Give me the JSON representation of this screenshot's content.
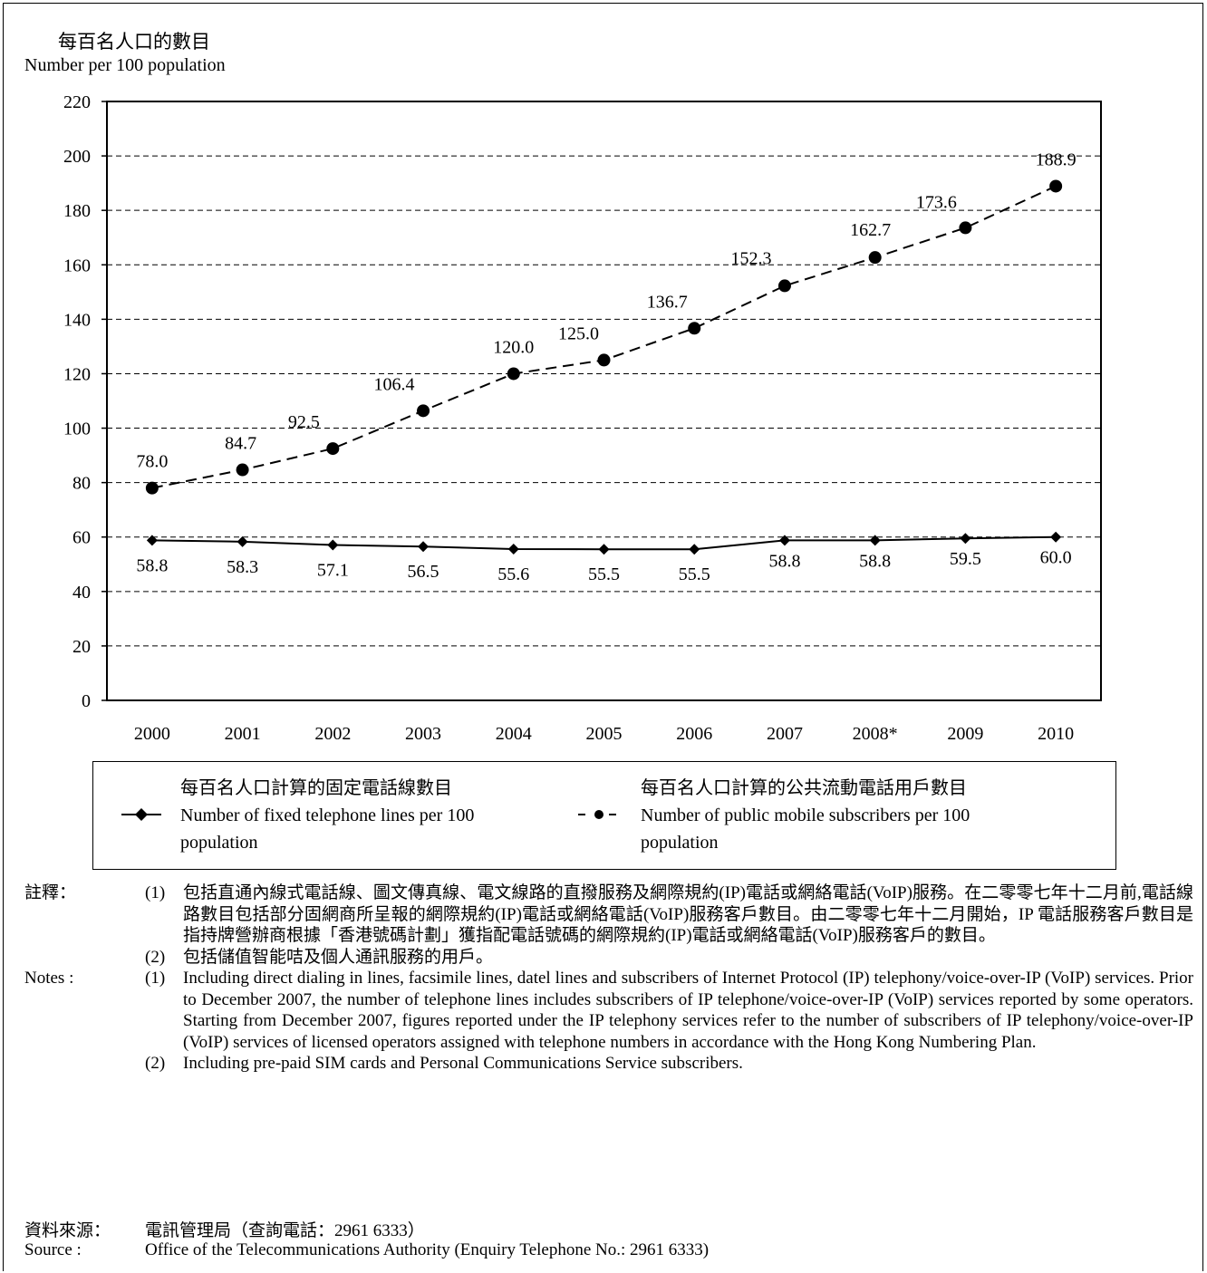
{
  "chart_data": {
    "type": "line",
    "ylabel_zh": "每百名人口的數目",
    "ylabel_en": "Number per 100 population",
    "ylim": [
      0,
      220
    ],
    "yticks": [
      "0",
      "20",
      "40",
      "60",
      "80",
      "100",
      "120",
      "140",
      "160",
      "180",
      "200",
      "220"
    ],
    "categories": [
      "2000",
      "2001",
      "2002",
      "2003",
      "2004",
      "2005",
      "2006",
      "2007",
      "2008*",
      "2009",
      "2010"
    ],
    "grid": true,
    "series": [
      {
        "name_zh": "每百名人口計算的固定電話線數目",
        "name": "Number of fixed telephone lines per 100 population",
        "style": "solid-diamond",
        "values": [
          58.8,
          58.3,
          57.1,
          56.5,
          55.6,
          55.5,
          55.5,
          58.8,
          58.8,
          59.5,
          60.0
        ],
        "labels": [
          "58.8",
          "58.3",
          "57.1",
          "56.5",
          "55.6",
          "55.5",
          "55.5",
          "58.8",
          "58.8",
          "59.5",
          "60.0"
        ]
      },
      {
        "name_zh": "每百名人口計算的公共流動電話用戶數目",
        "name": "Number of public mobile subscribers per 100 population",
        "style": "dashed-circle",
        "values": [
          78.0,
          84.7,
          92.5,
          106.4,
          120.0,
          125.0,
          136.7,
          152.3,
          162.7,
          173.6,
          188.9
        ],
        "labels": [
          "78.0",
          "84.7",
          "92.5",
          "106.4",
          "120.0",
          "125.0",
          "136.7",
          "152.3",
          "162.7",
          "173.6",
          "188.9"
        ]
      }
    ],
    "legend": {
      "position": "bottom",
      "item1_zh": "每百名人口計算的固定電話線數目",
      "item1_en_line1": "Number of fixed telephone lines per 100",
      "item1_en_line2": "population",
      "item2_zh": "每百名人口計算的公共流動電話用戶數目",
      "item2_en_line1": "Number of public mobile subscribers per 100",
      "item2_en_line2": "population"
    }
  },
  "notes": {
    "zh_header": "註釋：",
    "zh_1_num": "(1)",
    "zh_1_text": "包括直通內線式電話線、圖文傳真線、電文線路的直撥服務及網際規約(IP)電話或網絡電話(VoIP)服務。在二零零七年十二月前,電話線路數目包括部分固網商所呈報的網際規約(IP)電話或網絡電話(VoIP)服務客戶數目。由二零零七年十二月開始，IP 電話服務客戶數目是指持牌營辦商根據「香港號碼計劃」獲指配電話號碼的網際規約(IP)電話或網絡電話(VoIP)服務客戶的數目。",
    "zh_2_num": "(2)",
    "zh_2_text": "包括儲值智能咭及個人通訊服務的用戶。",
    "en_header": "Notes :",
    "en_1_num": "(1)",
    "en_1_text": "Including direct dialing in lines, facsimile lines, datel lines and subscribers of Internet Protocol (IP) telephony/voice-over-IP (VoIP) services.  Prior to December 2007, the number of telephone lines includes subscribers of IP telephone/voice-over-IP (VoIP) services reported by some operators.  Starting from December 2007, figures reported under the IP telephony services refer to the number of subscribers of IP telephony/voice-over-IP (VoIP) services of licensed operators assigned with telephone numbers in accordance with the Hong Kong Numbering Plan.",
    "en_2_num": "(2)",
    "en_2_text": "Including pre-paid SIM cards and Personal Communications Service subscribers."
  },
  "source": {
    "zh_header": "資料來源：",
    "zh_text": "電訊管理局（查詢電話：2961 6333）",
    "en_header": "Source :",
    "en_text": "Office of the Telecommunications Authority (Enquiry Telephone No.: 2961 6333)"
  }
}
